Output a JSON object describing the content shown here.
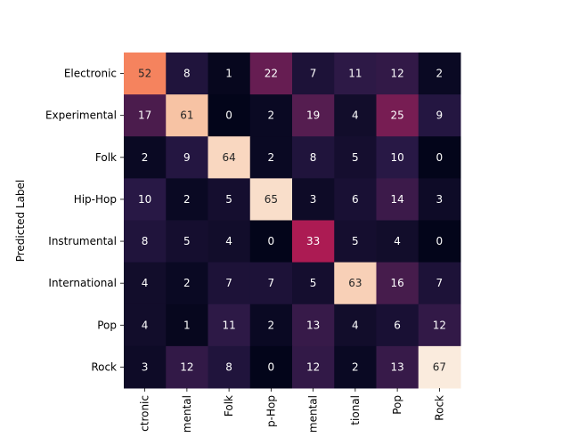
{
  "chart_data": {
    "type": "heatmap",
    "ylabel": "Predicted Label",
    "xlabel": "",
    "row_labels": [
      "Electronic",
      "Experimental",
      "Folk",
      "Hip-Hop",
      "Instrumental",
      "International",
      "Pop",
      "Rock"
    ],
    "col_tick_labels": [
      "ctronic",
      "mental",
      "Folk",
      "p-Hop",
      "mental",
      "tional",
      "Pop",
      "Rock"
    ],
    "values": [
      [
        52,
        8,
        1,
        22,
        7,
        11,
        12,
        2
      ],
      [
        17,
        61,
        0,
        2,
        19,
        4,
        25,
        9
      ],
      [
        2,
        9,
        64,
        2,
        8,
        5,
        10,
        0
      ],
      [
        10,
        2,
        5,
        65,
        3,
        6,
        14,
        3
      ],
      [
        8,
        5,
        4,
        0,
        33,
        5,
        4,
        0
      ],
      [
        4,
        2,
        7,
        7,
        5,
        63,
        16,
        7
      ],
      [
        4,
        1,
        11,
        2,
        13,
        4,
        6,
        12
      ],
      [
        3,
        12,
        8,
        0,
        12,
        2,
        13,
        67
      ]
    ],
    "value_range": [
      0,
      67
    ],
    "colormap": "rocket",
    "colorbar": false,
    "annotations": true
  }
}
